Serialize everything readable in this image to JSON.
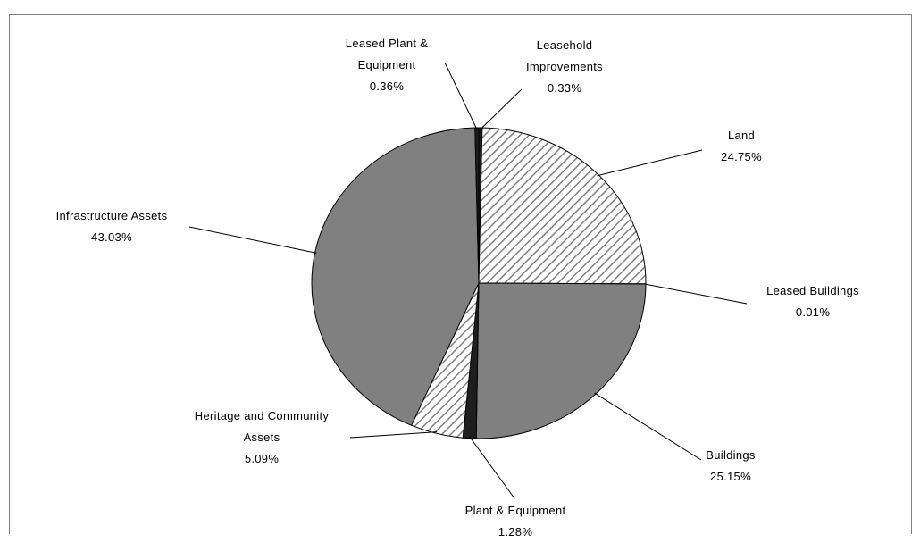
{
  "chart_data": {
    "type": "pie",
    "categories": [
      "Leasehold Improvements",
      "Land",
      "Leased Buildings",
      "Buildings",
      "Plant & Equipment",
      "Heritage and Community Assets",
      "Infrastructure Assets",
      "Leased Plant & Equipment"
    ],
    "values": [
      0.33,
      24.75,
      0.01,
      25.15,
      1.28,
      5.09,
      43.03,
      0.36
    ],
    "value_labels": [
      "0.33%",
      "24.75%",
      "0.01%",
      "25.15%",
      "1.28%",
      "5.09%",
      "43.03%",
      "0.36%"
    ],
    "colors": [
      "#1e1e1e",
      "hatch",
      "#808080",
      "#808080",
      "#1e1e1e",
      "hatch",
      "#808080",
      "#1e1e1e"
    ]
  }
}
